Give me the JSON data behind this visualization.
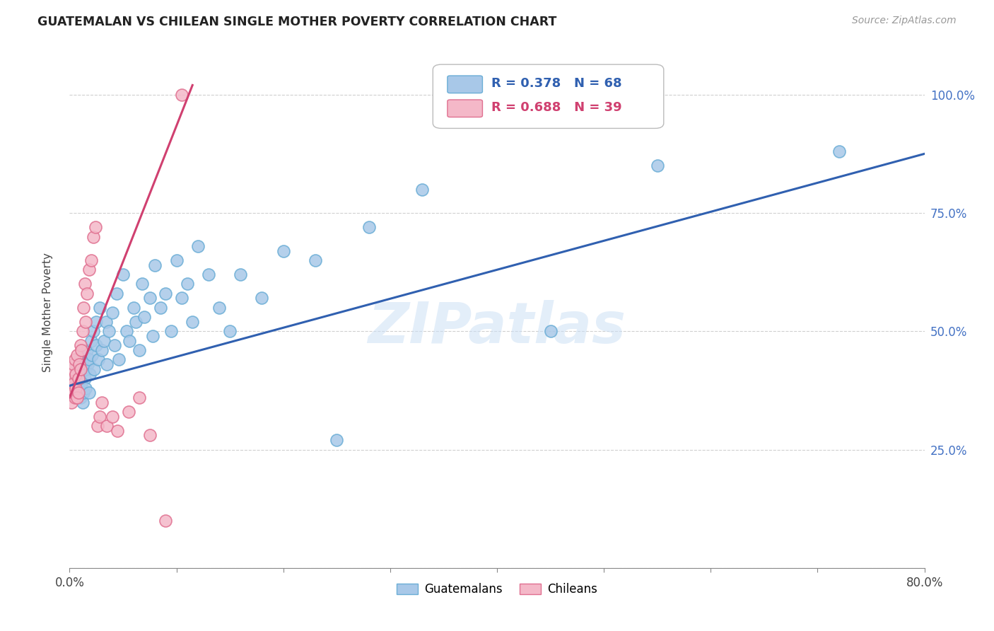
{
  "title": "GUATEMALAN VS CHILEAN SINGLE MOTHER POVERTY CORRELATION CHART",
  "source": "Source: ZipAtlas.com",
  "ylabel": "Single Mother Poverty",
  "xlim": [
    0.0,
    0.8
  ],
  "ylim": [
    0.0,
    1.08
  ],
  "legend_guatemalan": "Guatemalans",
  "legend_chilean": "Chileans",
  "r_guatemalan": "R = 0.378",
  "n_guatemalan": "N = 68",
  "r_chilean": "R = 0.688",
  "n_chilean": "N = 39",
  "color_guatemalan": "#a8c8e8",
  "color_chilean": "#f4b8c8",
  "edge_guatemalan": "#6baed6",
  "edge_chilean": "#e07090",
  "line_color_guatemalan": "#3060b0",
  "line_color_chilean": "#d04070",
  "blue_line_x0": 0.0,
  "blue_line_y0": 0.385,
  "blue_line_x1": 0.8,
  "blue_line_y1": 0.875,
  "pink_line_x0": 0.0,
  "pink_line_y0": 0.36,
  "pink_line_x1": 0.115,
  "pink_line_y1": 1.02,
  "watermark": "ZIPatlas",
  "background_color": "#ffffff",
  "grid_color": "#d0d0d0",
  "ytick_right_labels": [
    "25.0%",
    "50.0%",
    "75.0%",
    "100.0%"
  ],
  "ytick_right_values": [
    0.25,
    0.5,
    0.75,
    1.0
  ]
}
